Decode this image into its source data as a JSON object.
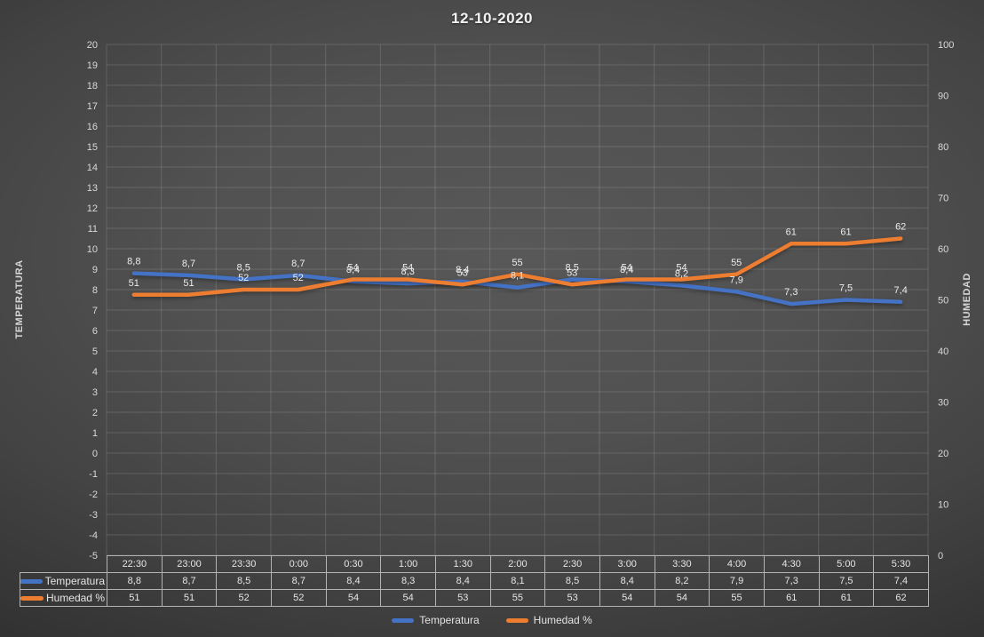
{
  "chart_data": {
    "type": "line",
    "title": "12-10-2020",
    "categories": [
      "22:30",
      "23:00",
      "23:30",
      "0:00",
      "0:30",
      "1:00",
      "1:30",
      "2:00",
      "2:30",
      "3:00",
      "3:30",
      "4:00",
      "4:30",
      "5:00",
      "5:30"
    ],
    "series": [
      {
        "name": "Temperatura",
        "axis": "left",
        "color": "#4472C4",
        "values": [
          8.8,
          8.7,
          8.5,
          8.7,
          8.4,
          8.3,
          8.4,
          8.1,
          8.5,
          8.4,
          8.2,
          7.9,
          7.3,
          7.5,
          7.4
        ],
        "labels": [
          "8,8",
          "8,7",
          "8,5",
          "8,7",
          "8,4",
          "8,3",
          "8,4",
          "8,1",
          "8,5",
          "8,4",
          "8,2",
          "7,9",
          "7,3",
          "7,5",
          "7,4"
        ]
      },
      {
        "name": "Humedad %",
        "axis": "right",
        "color": "#ED7D31",
        "values": [
          51,
          51,
          52,
          52,
          54,
          54,
          53,
          55,
          53,
          54,
          54,
          55,
          61,
          61,
          62
        ],
        "labels": [
          "51",
          "51",
          "52",
          "52",
          "54",
          "54",
          "53",
          "55",
          "53",
          "54",
          "54",
          "55",
          "61",
          "61",
          "62"
        ]
      }
    ],
    "left_axis": {
      "title": "TEMPERATURA",
      "min": -5,
      "max": 20,
      "step": 1
    },
    "right_axis": {
      "title": "HUMEDAD",
      "min": 0,
      "max": 100,
      "step": 10
    },
    "grid": true,
    "legend_position": "bottom",
    "data_table_shown": true
  }
}
